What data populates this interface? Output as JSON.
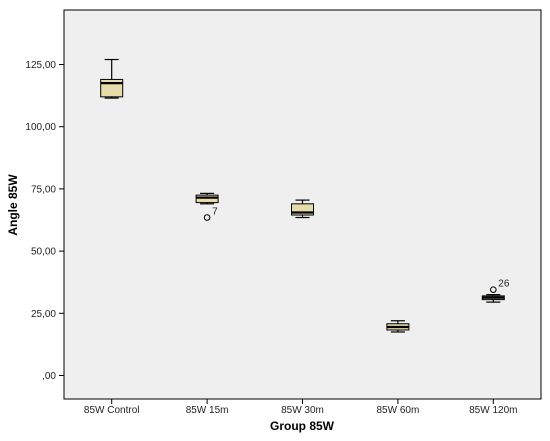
{
  "chart_data": {
    "type": "boxplot",
    "xlabel": "Group 85W",
    "ylabel": "Angle 85W",
    "ylim": [
      -12,
      150
    ],
    "yticks": [
      0,
      25,
      50,
      75,
      100,
      125
    ],
    "ytick_labels": [
      ",00",
      "25,00",
      "50,00",
      "75,00",
      "100,00",
      "125,00"
    ],
    "categories": [
      "85W Control",
      "85W 15m",
      "85W 30m",
      "85W 60m",
      "85W 120m"
    ],
    "boxes": [
      {
        "whisker_low": 111.5,
        "q1": 112,
        "median": 117.5,
        "q3": 119,
        "whisker_high": 127
      },
      {
        "whisker_low": 69,
        "q1": 69.5,
        "median": 71.5,
        "q3": 72.5,
        "whisker_high": 73.2
      },
      {
        "whisker_low": 63.5,
        "q1": 64.5,
        "median": 65.5,
        "q3": 69,
        "whisker_high": 70.5
      },
      {
        "whisker_low": 17.5,
        "q1": 18.3,
        "median": 19.5,
        "q3": 20.8,
        "whisker_high": 22
      },
      {
        "whisker_low": 29.5,
        "q1": 30.5,
        "median": 31.3,
        "q3": 32,
        "whisker_high": 32.5
      }
    ],
    "outliers": [
      {
        "category": "85W 15m",
        "value": 63.5,
        "label": "7"
      },
      {
        "category": "85W 120m",
        "value": 34.5,
        "label": "26"
      }
    ],
    "grid": false,
    "legend": "none",
    "colors": {
      "plot_background": "#efefef",
      "box_fill": "#e6dcaa",
      "line": "#000000"
    }
  }
}
